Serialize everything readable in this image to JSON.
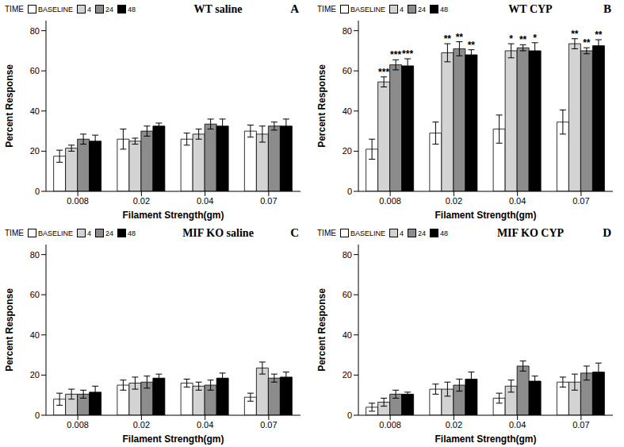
{
  "chart_data": [
    {
      "type": "bar",
      "title": "WT saline",
      "panel_label": "A",
      "x_label": "Filament Strength(gm)",
      "y_label": "Percent Response",
      "legend_title": "TIME",
      "legend": "top-left",
      "categories": [
        "0.008",
        "0.02",
        "0.04",
        "0.07"
      ],
      "ylim": [
        0,
        85
      ],
      "yticks": [
        0,
        20,
        40,
        60,
        80
      ],
      "series": [
        {
          "name": "BASELINE",
          "color": "#ffffff",
          "values": [
            17.5,
            26,
            26,
            30
          ],
          "errors": [
            3,
            5,
            3,
            3
          ],
          "significance": [
            null,
            null,
            null,
            null
          ]
        },
        {
          "name": "4",
          "color": "#d3d3d3",
          "values": [
            21.5,
            25,
            28.5,
            28.5
          ],
          "errors": [
            1.5,
            1.5,
            2.5,
            4
          ],
          "significance": [
            null,
            null,
            null,
            null
          ]
        },
        {
          "name": "24",
          "color": "#8c8c8c",
          "values": [
            26,
            30,
            33.5,
            32.5
          ],
          "errors": [
            2.5,
            2.5,
            2.5,
            2
          ],
          "significance": [
            null,
            null,
            null,
            null
          ]
        },
        {
          "name": "48",
          "color": "#000000",
          "values": [
            25,
            32.5,
            32.5,
            32.5
          ],
          "errors": [
            3,
            1.5,
            3.5,
            3.5
          ],
          "significance": [
            null,
            null,
            null,
            null
          ]
        }
      ]
    },
    {
      "type": "bar",
      "title": "MIF KO saline",
      "panel_label": "C",
      "x_label": "Filament Strength(gm)",
      "y_label": "Percent Response",
      "legend_title": "TIME",
      "legend": "top-left",
      "categories": [
        "0.008",
        "0.02",
        "0.04",
        "0.07"
      ],
      "ylim": [
        0,
        85
      ],
      "yticks": [
        0,
        20,
        40,
        60,
        80
      ],
      "series": [
        {
          "name": "BASELINE",
          "color": "#ffffff",
          "values": [
            8,
            15,
            16,
            9
          ],
          "errors": [
            3,
            2.5,
            2,
            2
          ],
          "significance": [
            null,
            null,
            null,
            null
          ]
        },
        {
          "name": "4",
          "color": "#d3d3d3",
          "values": [
            10.5,
            16,
            14.5,
            23.5
          ],
          "errors": [
            2.5,
            3,
            2,
            3
          ],
          "significance": [
            null,
            null,
            null,
            null
          ]
        },
        {
          "name": "24",
          "color": "#8c8c8c",
          "values": [
            10.5,
            16.5,
            15,
            18.5
          ],
          "errors": [
            2,
            3,
            2.5,
            2
          ],
          "significance": [
            null,
            null,
            null,
            null
          ]
        },
        {
          "name": "48",
          "color": "#000000",
          "values": [
            11.5,
            18.5,
            18.5,
            19
          ],
          "errors": [
            3,
            2,
            2.5,
            2.5
          ],
          "significance": [
            null,
            null,
            null,
            null
          ]
        }
      ]
    },
    {
      "type": "bar",
      "title": "WT CYP",
      "panel_label": "B",
      "x_label": "Filament Strength(gm)",
      "y_label": "Percent Response",
      "legend_title": "TIME",
      "legend": "top-left",
      "categories": [
        "0.008",
        "0.02",
        "0.04",
        "0.07"
      ],
      "ylim": [
        0,
        85
      ],
      "yticks": [
        0,
        20,
        40,
        60,
        80
      ],
      "series": [
        {
          "name": "BASELINE",
          "color": "#ffffff",
          "values": [
            21,
            29,
            31,
            34.5
          ],
          "errors": [
            5,
            5.5,
            7,
            6
          ],
          "significance": [
            null,
            null,
            null,
            null
          ]
        },
        {
          "name": "4",
          "color": "#d3d3d3",
          "values": [
            54.5,
            69,
            70,
            73.5
          ],
          "errors": [
            2.5,
            4.5,
            3.5,
            2.5
          ],
          "significance": [
            "***",
            "**",
            "*",
            "**"
          ]
        },
        {
          "name": "24",
          "color": "#8c8c8c",
          "values": [
            63,
            71,
            71.5,
            70
          ],
          "errors": [
            2.5,
            3.5,
            1.5,
            1.5
          ],
          "significance": [
            "***",
            "**",
            "**",
            "**"
          ]
        },
        {
          "name": "48",
          "color": "#000000",
          "values": [
            62.5,
            68,
            70,
            72.5
          ],
          "errors": [
            3.5,
            2.5,
            4,
            3
          ],
          "significance": [
            "***",
            "**",
            "*",
            "**"
          ]
        }
      ]
    },
    {
      "type": "bar",
      "title": "MIF KO CYP",
      "panel_label": "D",
      "x_label": "Filament Strength(gm)",
      "y_label": "Percent Response",
      "legend_title": "TIME",
      "legend": "top-left",
      "categories": [
        "0.008",
        "0.02",
        "0.04",
        "0.07"
      ],
      "ylim": [
        0,
        85
      ],
      "yticks": [
        0,
        20,
        40,
        60,
        80
      ],
      "series": [
        {
          "name": "BASELINE",
          "color": "#ffffff",
          "values": [
            4,
            13,
            8.5,
            16.5
          ],
          "errors": [
            2,
            2.5,
            2.5,
            2.5
          ],
          "significance": [
            null,
            null,
            null,
            null
          ]
        },
        {
          "name": "4",
          "color": "#d3d3d3",
          "values": [
            6.5,
            13,
            14.5,
            16.5
          ],
          "errors": [
            2,
            3.5,
            3,
            4
          ],
          "significance": [
            null,
            null,
            null,
            null
          ]
        },
        {
          "name": "24",
          "color": "#8c8c8c",
          "values": [
            10.5,
            15,
            24.5,
            21
          ],
          "errors": [
            2,
            3,
            2.5,
            3.5
          ],
          "significance": [
            null,
            null,
            null,
            null
          ]
        },
        {
          "name": "48",
          "color": "#000000",
          "values": [
            10.5,
            18,
            17,
            21.5
          ],
          "errors": [
            1,
            3.5,
            2.5,
            4.5
          ],
          "significance": [
            null,
            null,
            null,
            null
          ]
        }
      ]
    }
  ]
}
